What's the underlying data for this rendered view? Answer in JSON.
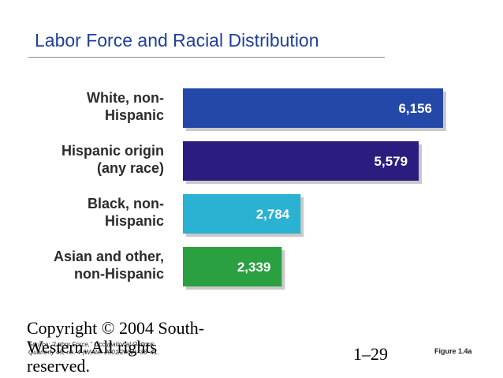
{
  "slide": {
    "title": "Labor Force and Racial Distribution",
    "copyright": "Copyright © 2004 South-Western. All rights reserved.",
    "source": "Source: \"Labor Force,\" Occupational Outlook Quarterly 45, no. 4 (Winter 2001/2002): 36–41.",
    "page_number": "1–29",
    "figure_label": "Figure 1.4a"
  },
  "chart_data": {
    "type": "bar",
    "orientation": "horizontal",
    "title": "",
    "xlabel": "",
    "ylabel": "",
    "categories": [
      [
        "White, non-",
        "Hispanic"
      ],
      [
        "Hispanic origin",
        "(any race)"
      ],
      [
        "Black, non-",
        "Hispanic"
      ],
      [
        "Asian and other,",
        "non-Hispanic"
      ]
    ],
    "values": [
      6156,
      5579,
      2784,
      2339
    ],
    "value_labels": [
      "6,156",
      "5,579",
      "2,784",
      "2,339"
    ],
    "colors": [
      "#2448a8",
      "#2b1d80",
      "#2bb1d2",
      "#2aa041"
    ],
    "xlim": [
      0,
      6156
    ],
    "grid": false
  }
}
